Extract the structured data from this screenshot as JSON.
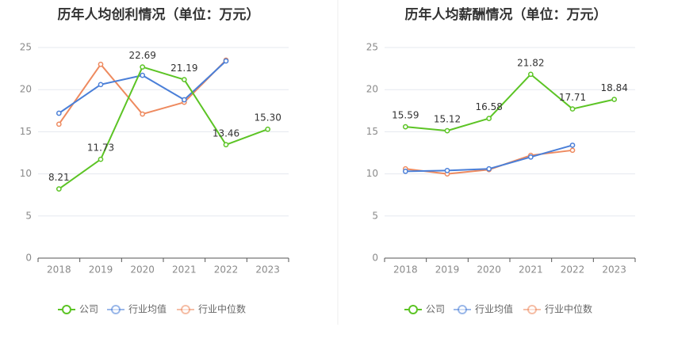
{
  "chart_data": [
    {
      "type": "line",
      "title": "历年人均创利情况（单位：万元）",
      "categories": [
        "2018",
        "2019",
        "2020",
        "2021",
        "2022",
        "2023"
      ],
      "yticks": [
        "0",
        "5",
        "10",
        "15",
        "20",
        "25"
      ],
      "ylim": [
        0,
        25
      ],
      "series": [
        {
          "name": "公司",
          "key": "company",
          "color": "#5cc425",
          "values": [
            8.21,
            11.73,
            22.69,
            21.19,
            13.46,
            15.3
          ],
          "labels": [
            "8.21",
            "11.73",
            "22.69",
            "21.19",
            "13.46",
            "15.30"
          ]
        },
        {
          "name": "行业均值",
          "key": "avg",
          "color": "#4a7fd8",
          "values": [
            17.2,
            20.6,
            21.7,
            18.8,
            23.4,
            null
          ]
        },
        {
          "name": "行业中位数",
          "key": "median",
          "color": "#ee8a5f",
          "values": [
            15.9,
            23.0,
            17.1,
            18.5,
            23.5,
            null
          ]
        }
      ]
    },
    {
      "type": "line",
      "title": "历年人均薪酬情况（单位：万元）",
      "categories": [
        "2018",
        "2019",
        "2020",
        "2021",
        "2022",
        "2023"
      ],
      "yticks": [
        "0",
        "5",
        "10",
        "15",
        "20",
        "25"
      ],
      "ylim": [
        0,
        25
      ],
      "series": [
        {
          "name": "公司",
          "key": "company",
          "color": "#5cc425",
          "values": [
            15.59,
            15.12,
            16.58,
            21.82,
            17.71,
            18.84
          ],
          "labels": [
            "15.59",
            "15.12",
            "16.58",
            "21.82",
            "17.71",
            "18.84"
          ]
        },
        {
          "name": "行业均值",
          "key": "avg",
          "color": "#4a7fd8",
          "values": [
            10.3,
            10.4,
            10.6,
            12.0,
            13.4,
            null
          ]
        },
        {
          "name": "行业中位数",
          "key": "median",
          "color": "#ee8a5f",
          "values": [
            10.6,
            10.0,
            10.5,
            12.2,
            12.8,
            null
          ]
        }
      ]
    }
  ]
}
